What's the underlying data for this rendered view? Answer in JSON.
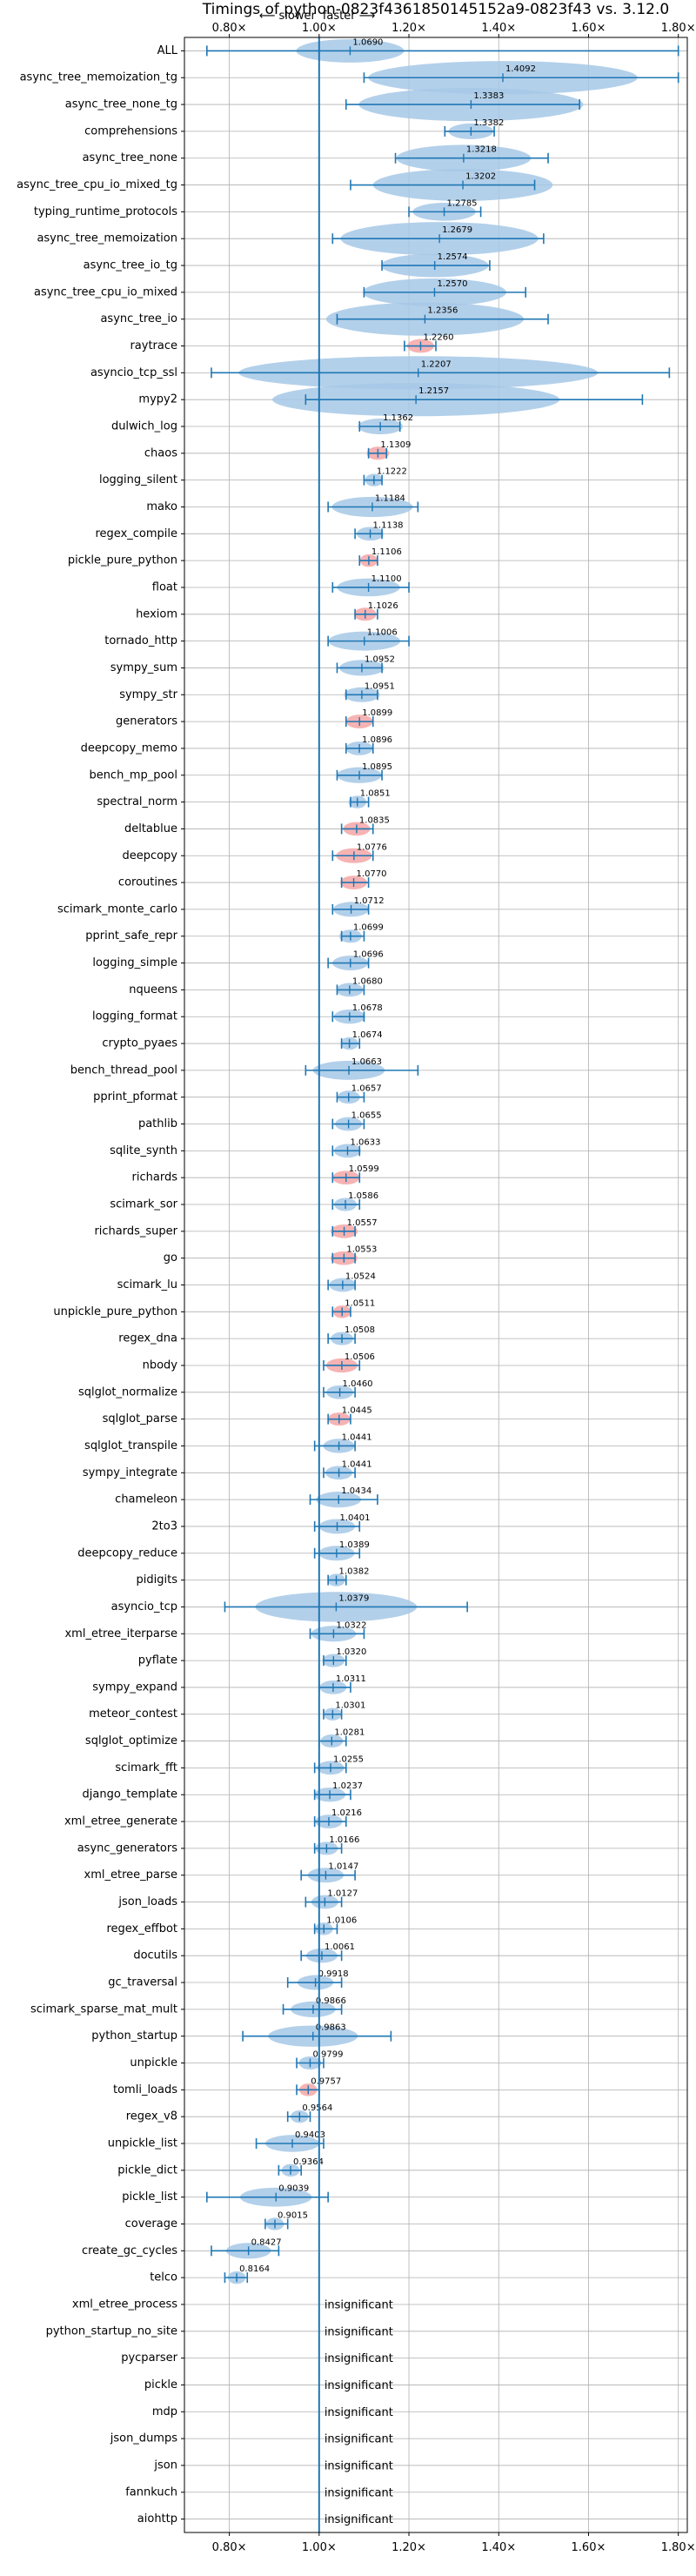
{
  "chart_data": {
    "type": "violin",
    "title": "Timings of python-0823f4361850145152a9-0823f43 vs. 3.12.0",
    "direction_labels": {
      "slower": "⟵ slower",
      "faster": "faster ⟶"
    },
    "xlim": [
      0.7,
      1.82
    ],
    "x_ticks": [
      0.8,
      1.0,
      1.2,
      1.4,
      1.6,
      1.8
    ],
    "x_tick_labels": [
      "0.80×",
      "1.00×",
      "1.20×",
      "1.40×",
      "1.60×",
      "1.80×"
    ],
    "reference_line": 1.0,
    "grid": true,
    "colors": {
      "violin": "#a6c8e6",
      "violin_significant_slow": "#f4a6a6",
      "whisker": "#1f77b4",
      "grid": "#b0b0b0"
    },
    "insignificant_label": "insignificant",
    "benchmarks": [
      {
        "name": "ALL",
        "value": 1.069,
        "min": 0.75,
        "max": 1.8,
        "spread": 0.12
      },
      {
        "name": "async_tree_memoization_tg",
        "value": 1.4092,
        "min": 1.1,
        "max": 1.8,
        "spread": 0.3
      },
      {
        "name": "async_tree_none_tg",
        "value": 1.3383,
        "min": 1.06,
        "max": 1.58,
        "spread": 0.25
      },
      {
        "name": "comprehensions",
        "value": 1.3382,
        "min": 1.28,
        "max": 1.39,
        "spread": 0.05
      },
      {
        "name": "async_tree_none",
        "value": 1.3218,
        "min": 1.17,
        "max": 1.51,
        "spread": 0.15
      },
      {
        "name": "async_tree_cpu_io_mixed_tg",
        "value": 1.3202,
        "min": 1.07,
        "max": 1.48,
        "spread": 0.2
      },
      {
        "name": "typing_runtime_protocols",
        "value": 1.2785,
        "min": 1.2,
        "max": 1.36,
        "spread": 0.07
      },
      {
        "name": "async_tree_memoization",
        "value": 1.2679,
        "min": 1.03,
        "max": 1.5,
        "spread": 0.22
      },
      {
        "name": "async_tree_io_tg",
        "value": 1.2574,
        "min": 1.14,
        "max": 1.38,
        "spread": 0.12
      },
      {
        "name": "async_tree_cpu_io_mixed",
        "value": 1.257,
        "min": 1.1,
        "max": 1.46,
        "spread": 0.16
      },
      {
        "name": "async_tree_io",
        "value": 1.2356,
        "min": 1.04,
        "max": 1.51,
        "spread": 0.22
      },
      {
        "name": "raytrace",
        "value": 1.226,
        "min": 1.19,
        "max": 1.26,
        "spread": 0.03,
        "highlight": true
      },
      {
        "name": "asyncio_tcp_ssl",
        "value": 1.2207,
        "min": 0.76,
        "max": 1.78,
        "spread": 0.4
      },
      {
        "name": "mypy2",
        "value": 1.2157,
        "min": 0.97,
        "max": 1.72,
        "spread": 0.32
      },
      {
        "name": "dulwich_log",
        "value": 1.1362,
        "min": 1.09,
        "max": 1.18,
        "spread": 0.05
      },
      {
        "name": "chaos",
        "value": 1.1309,
        "min": 1.11,
        "max": 1.15,
        "spread": 0.025,
        "highlight": true
      },
      {
        "name": "logging_silent",
        "value": 1.1222,
        "min": 1.1,
        "max": 1.14,
        "spread": 0.02
      },
      {
        "name": "mako",
        "value": 1.1184,
        "min": 1.02,
        "max": 1.22,
        "spread": 0.09
      },
      {
        "name": "regex_compile",
        "value": 1.1138,
        "min": 1.08,
        "max": 1.14,
        "spread": 0.03
      },
      {
        "name": "pickle_pure_python",
        "value": 1.1106,
        "min": 1.09,
        "max": 1.13,
        "spread": 0.02,
        "highlight": true
      },
      {
        "name": "float",
        "value": 1.11,
        "min": 1.03,
        "max": 1.2,
        "spread": 0.07
      },
      {
        "name": "hexiom",
        "value": 1.1026,
        "min": 1.08,
        "max": 1.13,
        "spread": 0.025,
        "highlight": true
      },
      {
        "name": "tornado_http",
        "value": 1.1006,
        "min": 1.02,
        "max": 1.2,
        "spread": 0.08
      },
      {
        "name": "sympy_sum",
        "value": 1.0952,
        "min": 1.04,
        "max": 1.14,
        "spread": 0.05
      },
      {
        "name": "sympy_str",
        "value": 1.0951,
        "min": 1.06,
        "max": 1.13,
        "spread": 0.04
      },
      {
        "name": "generators",
        "value": 1.0899,
        "min": 1.06,
        "max": 1.12,
        "spread": 0.03,
        "highlight": true
      },
      {
        "name": "deepcopy_memo",
        "value": 1.0896,
        "min": 1.06,
        "max": 1.12,
        "spread": 0.03
      },
      {
        "name": "bench_mp_pool",
        "value": 1.0895,
        "min": 1.04,
        "max": 1.14,
        "spread": 0.05
      },
      {
        "name": "spectral_norm",
        "value": 1.0851,
        "min": 1.07,
        "max": 1.11,
        "spread": 0.02
      },
      {
        "name": "deltablue",
        "value": 1.0835,
        "min": 1.05,
        "max": 1.12,
        "spread": 0.03,
        "highlight": true
      },
      {
        "name": "deepcopy",
        "value": 1.0776,
        "min": 1.03,
        "max": 1.12,
        "spread": 0.04,
        "highlight": true
      },
      {
        "name": "coroutines",
        "value": 1.077,
        "min": 1.05,
        "max": 1.11,
        "spread": 0.03,
        "highlight": true
      },
      {
        "name": "scimark_monte_carlo",
        "value": 1.0712,
        "min": 1.03,
        "max": 1.11,
        "spread": 0.04
      },
      {
        "name": "pprint_safe_repr",
        "value": 1.0699,
        "min": 1.05,
        "max": 1.1,
        "spread": 0.025
      },
      {
        "name": "logging_simple",
        "value": 1.0696,
        "min": 1.02,
        "max": 1.11,
        "spread": 0.04
      },
      {
        "name": "nqueens",
        "value": 1.068,
        "min": 1.04,
        "max": 1.1,
        "spread": 0.03
      },
      {
        "name": "logging_format",
        "value": 1.0678,
        "min": 1.03,
        "max": 1.1,
        "spread": 0.035
      },
      {
        "name": "crypto_pyaes",
        "value": 1.0674,
        "min": 1.05,
        "max": 1.09,
        "spread": 0.02
      },
      {
        "name": "bench_thread_pool",
        "value": 1.0663,
        "min": 0.97,
        "max": 1.22,
        "spread": 0.08
      },
      {
        "name": "pprint_pformat",
        "value": 1.0657,
        "min": 1.04,
        "max": 1.1,
        "spread": 0.025
      },
      {
        "name": "pathlib",
        "value": 1.0655,
        "min": 1.03,
        "max": 1.1,
        "spread": 0.03
      },
      {
        "name": "sqlite_synth",
        "value": 1.0633,
        "min": 1.03,
        "max": 1.09,
        "spread": 0.03
      },
      {
        "name": "richards",
        "value": 1.0599,
        "min": 1.03,
        "max": 1.09,
        "spread": 0.03,
        "highlight": true
      },
      {
        "name": "scimark_sor",
        "value": 1.0586,
        "min": 1.03,
        "max": 1.09,
        "spread": 0.025
      },
      {
        "name": "richards_super",
        "value": 1.0557,
        "min": 1.03,
        "max": 1.08,
        "spread": 0.03,
        "highlight": true
      },
      {
        "name": "go",
        "value": 1.0553,
        "min": 1.03,
        "max": 1.08,
        "spread": 0.03,
        "highlight": true
      },
      {
        "name": "scimark_lu",
        "value": 1.0524,
        "min": 1.02,
        "max": 1.08,
        "spread": 0.03
      },
      {
        "name": "unpickle_pure_python",
        "value": 1.0511,
        "min": 1.03,
        "max": 1.07,
        "spread": 0.02,
        "highlight": true
      },
      {
        "name": "regex_dna",
        "value": 1.0508,
        "min": 1.02,
        "max": 1.08,
        "spread": 0.025
      },
      {
        "name": "nbody",
        "value": 1.0506,
        "min": 1.01,
        "max": 1.09,
        "spread": 0.035,
        "highlight": true
      },
      {
        "name": "sqlglot_normalize",
        "value": 1.046,
        "min": 1.01,
        "max": 1.08,
        "spread": 0.03
      },
      {
        "name": "sqlglot_parse",
        "value": 1.0445,
        "min": 1.02,
        "max": 1.07,
        "spread": 0.025,
        "highlight": true
      },
      {
        "name": "sqlglot_transpile",
        "value": 1.0441,
        "min": 0.99,
        "max": 1.08,
        "spread": 0.035
      },
      {
        "name": "sympy_integrate",
        "value": 1.0441,
        "min": 1.01,
        "max": 1.08,
        "spread": 0.03
      },
      {
        "name": "chameleon",
        "value": 1.0434,
        "min": 0.98,
        "max": 1.13,
        "spread": 0.05
      },
      {
        "name": "2to3",
        "value": 1.0401,
        "min": 0.99,
        "max": 1.09,
        "spread": 0.04
      },
      {
        "name": "deepcopy_reduce",
        "value": 1.0389,
        "min": 0.99,
        "max": 1.09,
        "spread": 0.04
      },
      {
        "name": "pidigits",
        "value": 1.0382,
        "min": 1.02,
        "max": 1.06,
        "spread": 0.02
      },
      {
        "name": "asyncio_tcp",
        "value": 1.0379,
        "min": 0.79,
        "max": 1.33,
        "spread": 0.18
      },
      {
        "name": "xml_etree_iterparse",
        "value": 1.0322,
        "min": 0.98,
        "max": 1.1,
        "spread": 0.05
      },
      {
        "name": "pyflate",
        "value": 1.032,
        "min": 1.01,
        "max": 1.06,
        "spread": 0.025
      },
      {
        "name": "sympy_expand",
        "value": 1.0311,
        "min": 1.0,
        "max": 1.07,
        "spread": 0.03
      },
      {
        "name": "meteor_contest",
        "value": 1.0301,
        "min": 1.01,
        "max": 1.05,
        "spread": 0.02
      },
      {
        "name": "sqlglot_optimize",
        "value": 1.0281,
        "min": 1.0,
        "max": 1.06,
        "spread": 0.025
      },
      {
        "name": "scimark_fft",
        "value": 1.0255,
        "min": 0.99,
        "max": 1.06,
        "spread": 0.03
      },
      {
        "name": "django_template",
        "value": 1.0237,
        "min": 0.99,
        "max": 1.07,
        "spread": 0.035
      },
      {
        "name": "xml_etree_generate",
        "value": 1.0216,
        "min": 0.99,
        "max": 1.06,
        "spread": 0.03
      },
      {
        "name": "async_generators",
        "value": 1.0166,
        "min": 0.99,
        "max": 1.05,
        "spread": 0.025
      },
      {
        "name": "xml_etree_parse",
        "value": 1.0147,
        "min": 0.96,
        "max": 1.08,
        "spread": 0.04
      },
      {
        "name": "json_loads",
        "value": 1.0127,
        "min": 0.97,
        "max": 1.05,
        "spread": 0.03
      },
      {
        "name": "regex_effbot",
        "value": 1.0106,
        "min": 0.99,
        "max": 1.04,
        "spread": 0.02
      },
      {
        "name": "docutils",
        "value": 1.0061,
        "min": 0.96,
        "max": 1.05,
        "spread": 0.035
      },
      {
        "name": "gc_traversal",
        "value": 0.9918,
        "min": 0.93,
        "max": 1.05,
        "spread": 0.04
      },
      {
        "name": "scimark_sparse_mat_mult",
        "value": 0.9866,
        "min": 0.92,
        "max": 1.05,
        "spread": 0.05
      },
      {
        "name": "python_startup",
        "value": 0.9863,
        "min": 0.83,
        "max": 1.16,
        "spread": 0.1
      },
      {
        "name": "unpickle",
        "value": 0.9799,
        "min": 0.95,
        "max": 1.01,
        "spread": 0.025
      },
      {
        "name": "tomli_loads",
        "value": 0.9757,
        "min": 0.95,
        "max": 1.0,
        "spread": 0.02,
        "highlight": true
      },
      {
        "name": "regex_v8",
        "value": 0.9564,
        "min": 0.93,
        "max": 0.98,
        "spread": 0.02
      },
      {
        "name": "unpickle_list",
        "value": 0.9403,
        "min": 0.86,
        "max": 1.01,
        "spread": 0.06
      },
      {
        "name": "pickle_dict",
        "value": 0.9364,
        "min": 0.91,
        "max": 0.96,
        "spread": 0.02
      },
      {
        "name": "pickle_list",
        "value": 0.9039,
        "min": 0.75,
        "max": 1.02,
        "spread": 0.08
      },
      {
        "name": "coverage",
        "value": 0.9015,
        "min": 0.88,
        "max": 0.93,
        "spread": 0.02
      },
      {
        "name": "create_gc_cycles",
        "value": 0.8427,
        "min": 0.76,
        "max": 0.91,
        "spread": 0.05
      },
      {
        "name": "telco",
        "value": 0.8164,
        "min": 0.79,
        "max": 0.84,
        "spread": 0.02
      },
      {
        "name": "xml_etree_process",
        "value": null,
        "insignificant": true
      },
      {
        "name": "python_startup_no_site",
        "value": null,
        "insignificant": true
      },
      {
        "name": "pycparser",
        "value": null,
        "insignificant": true
      },
      {
        "name": "pickle",
        "value": null,
        "insignificant": true
      },
      {
        "name": "mdp",
        "value": null,
        "insignificant": true
      },
      {
        "name": "json_dumps",
        "value": null,
        "insignificant": true
      },
      {
        "name": "json",
        "value": null,
        "insignificant": true
      },
      {
        "name": "fannkuch",
        "value": null,
        "insignificant": true
      },
      {
        "name": "aiohttp",
        "value": null,
        "insignificant": true
      }
    ]
  }
}
